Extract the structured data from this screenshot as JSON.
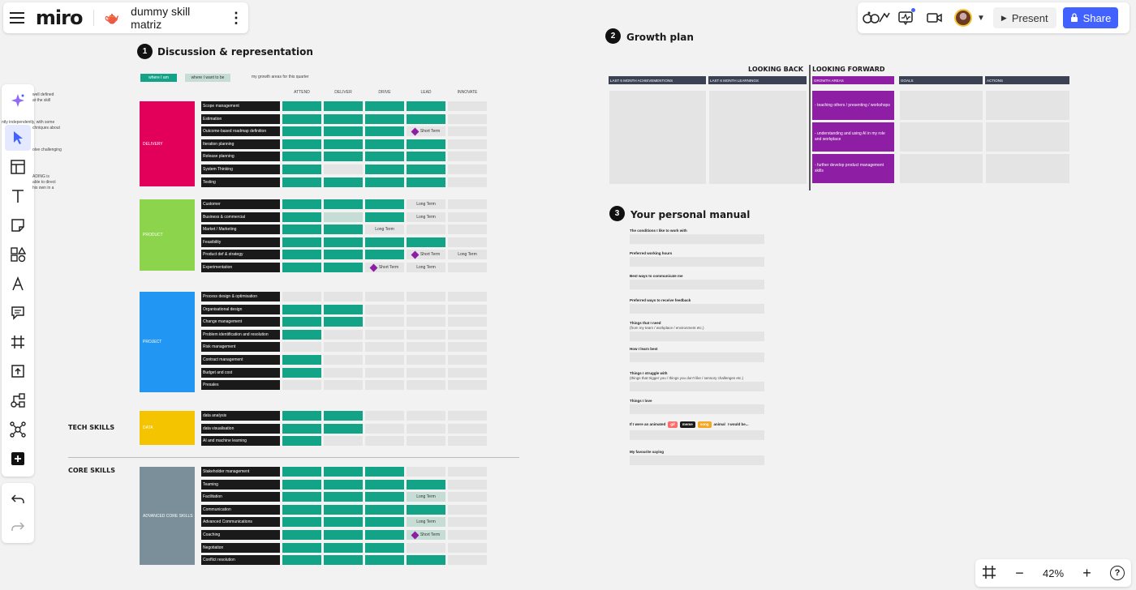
{
  "board": {
    "logo": "miro",
    "emoji": "🫖",
    "title": "dummy skill matriz",
    "kebab": "⋮"
  },
  "header": {
    "present_label": "Present",
    "share_label": "Share"
  },
  "zoom": {
    "level": "42%",
    "minus": "−",
    "plus": "+",
    "help": "?"
  },
  "sections": {
    "s1": {
      "number": "1",
      "title": "Discussion & representation"
    },
    "s2": {
      "number": "2",
      "title": "Growth plan"
    },
    "s3": {
      "number": "3",
      "title": "Your personal manual"
    }
  },
  "legend": {
    "current": "where I am",
    "target": "where I want to be",
    "growth": "my growth areas for this quarter"
  },
  "matrix": {
    "columns": [
      "ATTEND",
      "DELIVER",
      "DRIVE",
      "LEAD",
      "INNOVATE"
    ],
    "side_labels": {
      "tech": "TECH SKILLS",
      "core": "CORE SKILLS"
    },
    "categories": [
      {
        "name": "DELIVERY",
        "color": "#e2005a",
        "skills": [
          {
            "label": "Scope management",
            "cells": [
              "g",
              "g",
              "g",
              "g",
              "x"
            ],
            "texts": [
              "",
              "",
              "",
              "",
              ""
            ]
          },
          {
            "label": "Estimation",
            "cells": [
              "g",
              "g",
              "g",
              "g",
              "x"
            ],
            "texts": [
              "",
              "",
              "",
              "",
              ""
            ]
          },
          {
            "label": "Outcome-based roadmap definition",
            "cells": [
              "g",
              "g",
              "g",
              "d",
              "x"
            ],
            "texts": [
              "",
              "",
              "",
              "Short Term",
              ""
            ]
          },
          {
            "label": "Iteration planning",
            "cells": [
              "g",
              "g",
              "g",
              "g",
              "x"
            ],
            "texts": [
              "",
              "",
              "",
              "",
              ""
            ]
          },
          {
            "label": "Release planning",
            "cells": [
              "g",
              "g",
              "g",
              "g",
              "x"
            ],
            "texts": [
              "",
              "",
              "",
              "",
              ""
            ]
          },
          {
            "label": "System Thinking",
            "cells": [
              "g",
              "x",
              "g",
              "g",
              "x"
            ],
            "texts": [
              "",
              "",
              "",
              "",
              ""
            ]
          },
          {
            "label": "Testing",
            "cells": [
              "g",
              "g",
              "g",
              "g",
              "x"
            ],
            "texts": [
              "",
              "",
              "",
              "",
              ""
            ]
          }
        ]
      },
      {
        "name": "PRODUCT",
        "color": "#8cd44c",
        "skills": [
          {
            "label": "Customer",
            "cells": [
              "g",
              "g",
              "g",
              "x",
              "x"
            ],
            "texts": [
              "",
              "",
              "",
              "Long Term",
              ""
            ]
          },
          {
            "label": "Business & commercial",
            "cells": [
              "g",
              "l",
              "g",
              "x",
              "x"
            ],
            "texts": [
              "",
              "",
              "",
              "Long Term",
              ""
            ]
          },
          {
            "label": "Market / Marketing",
            "cells": [
              "g",
              "g",
              "x",
              "x",
              "x"
            ],
            "texts": [
              "",
              "",
              "Long Term",
              "",
              ""
            ]
          },
          {
            "label": "Feasibility",
            "cells": [
              "g",
              "g",
              "g",
              "g",
              "x"
            ],
            "texts": [
              "",
              "",
              "",
              "",
              ""
            ]
          },
          {
            "label": "Product def & strategy",
            "cells": [
              "g",
              "g",
              "g",
              "d",
              "x"
            ],
            "texts": [
              "",
              "",
              "",
              "Short Term",
              "Long Term"
            ]
          },
          {
            "label": "Experimentation",
            "cells": [
              "g",
              "g",
              "d",
              "x",
              "x"
            ],
            "texts": [
              "",
              "",
              "Short Term",
              "Long Term",
              ""
            ]
          }
        ]
      },
      {
        "name": "PROJECT",
        "color": "#2196f3",
        "skills": [
          {
            "label": "Process design & optimisation",
            "cells": [
              "x",
              "x",
              "x",
              "x",
              "x"
            ],
            "texts": [
              "",
              "",
              "",
              "",
              ""
            ]
          },
          {
            "label": "Organisational design",
            "cells": [
              "g",
              "g",
              "x",
              "x",
              "x"
            ],
            "texts": [
              "",
              "",
              "",
              "",
              ""
            ]
          },
          {
            "label": "Change management",
            "cells": [
              "g",
              "g",
              "x",
              "x",
              "x"
            ],
            "texts": [
              "",
              "",
              "",
              "",
              ""
            ]
          },
          {
            "label": "Problem identification and resolution",
            "cells": [
              "g",
              "x",
              "x",
              "x",
              "x"
            ],
            "texts": [
              "",
              "",
              "",
              "",
              ""
            ]
          },
          {
            "label": "Risk management",
            "cells": [
              "x",
              "x",
              "x",
              "x",
              "x"
            ],
            "texts": [
              "",
              "",
              "",
              "",
              ""
            ]
          },
          {
            "label": "Contract management",
            "cells": [
              "g",
              "x",
              "x",
              "x",
              "x"
            ],
            "texts": [
              "",
              "",
              "",
              "",
              ""
            ]
          },
          {
            "label": "Budget and cost",
            "cells": [
              "g",
              "x",
              "x",
              "x",
              "x"
            ],
            "texts": [
              "",
              "",
              "",
              "",
              ""
            ]
          },
          {
            "label": "Presales",
            "cells": [
              "x",
              "x",
              "x",
              "x",
              "x"
            ],
            "texts": [
              "",
              "",
              "",
              "",
              ""
            ]
          }
        ]
      },
      {
        "name": "DATA",
        "color": "#f5c400",
        "skills": [
          {
            "label": "data analysis",
            "cells": [
              "g",
              "g",
              "x",
              "x",
              "x"
            ],
            "texts": [
              "",
              "",
              "",
              "",
              ""
            ]
          },
          {
            "label": "data visualisation",
            "cells": [
              "g",
              "g",
              "x",
              "x",
              "x"
            ],
            "texts": [
              "",
              "",
              "",
              "",
              ""
            ]
          },
          {
            "label": "AI and machine learning",
            "cells": [
              "g",
              "x",
              "x",
              "x",
              "x"
            ],
            "texts": [
              "",
              "",
              "",
              "",
              ""
            ]
          }
        ]
      },
      {
        "name": "ADVANCED CORE SKILLS",
        "color": "#7a8f99",
        "skills": [
          {
            "label": "Stakeholder management",
            "cells": [
              "g",
              "g",
              "g",
              "x",
              "x"
            ],
            "texts": [
              "",
              "",
              "",
              "",
              ""
            ]
          },
          {
            "label": "Teaming",
            "cells": [
              "g",
              "g",
              "g",
              "g",
              "x"
            ],
            "texts": [
              "",
              "",
              "",
              "",
              ""
            ]
          },
          {
            "label": "Facilitation",
            "cells": [
              "g",
              "g",
              "g",
              "l",
              "x"
            ],
            "texts": [
              "",
              "",
              "",
              "Long Term",
              ""
            ]
          },
          {
            "label": "Communication",
            "cells": [
              "g",
              "g",
              "g",
              "g",
              "x"
            ],
            "texts": [
              "",
              "",
              "",
              "",
              ""
            ]
          },
          {
            "label": "Advanced Communications",
            "cells": [
              "g",
              "g",
              "g",
              "l",
              "x"
            ],
            "texts": [
              "",
              "",
              "",
              "Long Term",
              ""
            ]
          },
          {
            "label": "Coaching",
            "cells": [
              "g",
              "g",
              "g",
              "dl",
              "x"
            ],
            "texts": [
              "",
              "",
              "",
              "Short Term",
              ""
            ]
          },
          {
            "label": "Negotiation",
            "cells": [
              "g",
              "g",
              "g",
              "x",
              "x"
            ],
            "texts": [
              "",
              "",
              "",
              "",
              ""
            ]
          },
          {
            "label": "Conflict resolution",
            "cells": [
              "g",
              "g",
              "g",
              "g",
              "x"
            ],
            "texts": [
              "",
              "",
              "",
              "",
              ""
            ]
          }
        ]
      }
    ]
  },
  "clipped_text": [
    "well defined",
    "at the skill",
    "ntly independently, with some",
    "chniques about",
    "olve challenging",
    "ADING is",
    "able to direct",
    "his own in a"
  ],
  "growth_plan": {
    "looking_back": "LOOKING BACK",
    "looking_forward": "LOOKING FORWARD",
    "columns": [
      "LAST 6 MONTH ACHIEVEMENTIONS",
      "LAST 6 MONTH LEARNINGS",
      "GROWTH AREAS",
      "GOALS",
      "ACTIONS"
    ],
    "growth_areas": [
      "- teaching others / presenting / workshops",
      "- understanding and using AI in my role and workplace",
      "- further develop product management skills"
    ]
  },
  "manual": {
    "prompts": [
      {
        "label": "The conditions I like to work with",
        "sub": ""
      },
      {
        "label": "Preferred working hours",
        "sub": ""
      },
      {
        "label": "Best ways to communicate me",
        "sub": ""
      },
      {
        "label": "Preferred ways to receive feedback",
        "sub": ""
      },
      {
        "label": "Things that I need",
        "sub": "(from my team / workplace / environment etc.)"
      },
      {
        "label": "How I learn best",
        "sub": ""
      },
      {
        "label": "Things I struggle with",
        "sub": "(things that trigger you / things you don't like / sensory challenges etc.)"
      },
      {
        "label": "Things I love",
        "sub": ""
      }
    ],
    "animated": {
      "prefix": "If I were an animated",
      "tags": [
        "gif",
        "meme",
        "song"
      ],
      "middle": "animal",
      "suffix": "I would be..."
    },
    "favourite": "My favourite saying"
  },
  "colors": {
    "green": "#13a387",
    "purple": "#8e1ea3",
    "share_blue": "#4262ff",
    "dark_label": "#1a1a1a",
    "header_dark": "#3b4253"
  }
}
